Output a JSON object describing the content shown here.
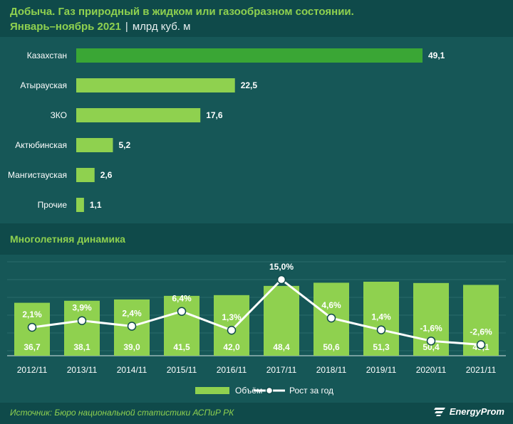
{
  "title": "Добыча. Газ природный в жидком или газообразном состоянии.",
  "subtitle": "Январь–ноябрь 2021",
  "unit": "млрд куб. м",
  "section2_title": "Многолетняя динамика",
  "source": "Источник: Бюро национальной статистики АСПиР РК",
  "logo_text": "EnergyProm",
  "colors": {
    "bg": "#0f4a4a",
    "panel": "#165757",
    "accent": "#8fd14f",
    "highlight": "#3aa635"
  },
  "chart_data": [
    {
      "type": "bar",
      "orientation": "horizontal",
      "categories": [
        "Казахстан",
        "Атырауская",
        "ЗКО",
        "Актюбинская",
        "Мангистауская",
        "Прочие"
      ],
      "values": [
        49.1,
        22.5,
        17.6,
        5.2,
        2.6,
        1.1
      ],
      "value_labels": [
        "49,1",
        "22,5",
        "17,6",
        "5,2",
        "2,6",
        "1,1"
      ]
    },
    {
      "type": "bar",
      "categories": [
        "2012/11",
        "2013/11",
        "2014/11",
        "2015/11",
        "2016/11",
        "2017/11",
        "2018/11",
        "2019/11",
        "2020/11",
        "2021/11"
      ],
      "series": [
        {
          "name": "Объём",
          "type": "bar",
          "values": [
            36.7,
            38.1,
            39.0,
            41.5,
            42.0,
            48.4,
            50.6,
            51.3,
            50.4,
            49.1
          ],
          "labels": [
            "36,7",
            "38,1",
            "39,0",
            "41,5",
            "42,0",
            "48,4",
            "50,6",
            "51,3",
            "50,4",
            "49,1"
          ]
        },
        {
          "name": "Рост за год",
          "type": "line",
          "values": [
            2.1,
            3.9,
            2.4,
            6.4,
            1.3,
            15.0,
            4.6,
            1.4,
            -1.6,
            -2.6
          ],
          "labels": [
            "2,1%",
            "3,9%",
            "2,4%",
            "6,4%",
            "1,3%",
            "15,0%",
            "4,6%",
            "1,4%",
            "-1,6%",
            "-2,6%"
          ]
        }
      ],
      "legend": "bottom",
      "grid": true
    }
  ]
}
